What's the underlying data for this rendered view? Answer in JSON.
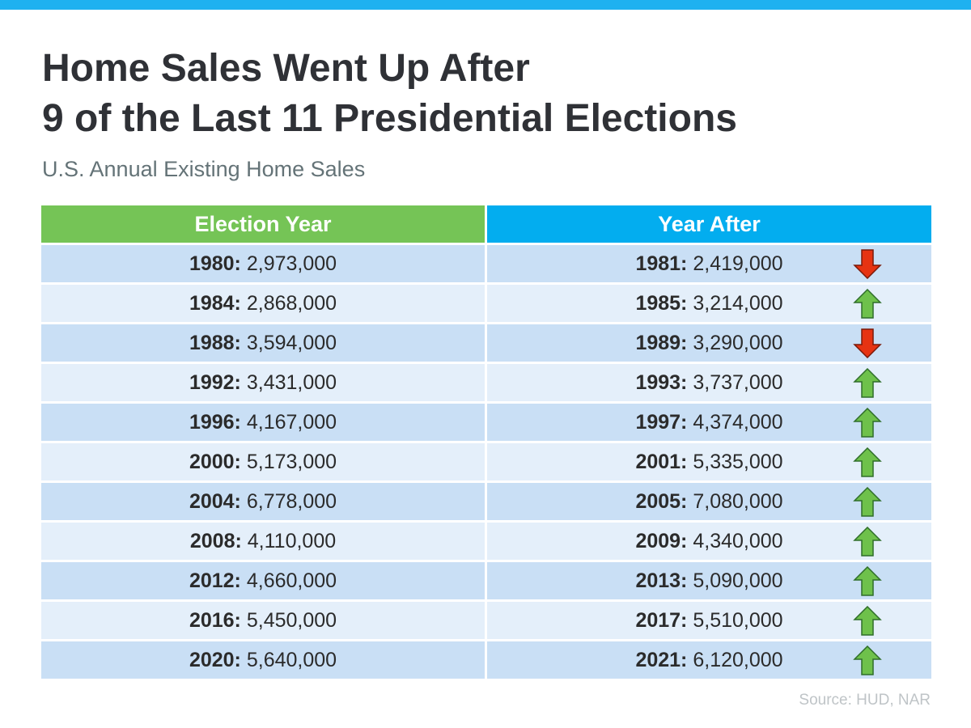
{
  "title_line1": "Home Sales Went Up After",
  "title_line2": "9 of the Last 11 Presidential Elections",
  "subtitle": "U.S. Annual Existing Home Sales",
  "source": "Source: HUD, NAR",
  "colors": {
    "top_bar": "#1eb1f0",
    "header_left": "#75c456",
    "header_right": "#03adef",
    "row_dark": "#c9dff5",
    "row_light": "#e4effa",
    "arrow_up": "#6ec14b",
    "arrow_down": "#e63312"
  },
  "chart_data": {
    "type": "table",
    "columns": [
      "Election Year",
      "Year After"
    ],
    "rows": [
      {
        "election_year": "1980:",
        "election_sales": "2,973,000",
        "after_year": "1981:",
        "after_sales": "2,419,000",
        "trend": "down"
      },
      {
        "election_year": "1984:",
        "election_sales": "2,868,000",
        "after_year": "1985:",
        "after_sales": "3,214,000",
        "trend": "up"
      },
      {
        "election_year": "1988:",
        "election_sales": "3,594,000",
        "after_year": "1989:",
        "after_sales": "3,290,000",
        "trend": "down"
      },
      {
        "election_year": "1992:",
        "election_sales": "3,431,000",
        "after_year": "1993:",
        "after_sales": "3,737,000",
        "trend": "up"
      },
      {
        "election_year": "1996:",
        "election_sales": "4,167,000",
        "after_year": "1997:",
        "after_sales": "4,374,000",
        "trend": "up"
      },
      {
        "election_year": "2000:",
        "election_sales": "5,173,000",
        "after_year": "2001:",
        "after_sales": "5,335,000",
        "trend": "up"
      },
      {
        "election_year": "2004:",
        "election_sales": "6,778,000",
        "after_year": "2005:",
        "after_sales": "7,080,000",
        "trend": "up"
      },
      {
        "election_year": "2008:",
        "election_sales": "4,110,000",
        "after_year": "2009:",
        "after_sales": "4,340,000",
        "trend": "up"
      },
      {
        "election_year": "2012:",
        "election_sales": "4,660,000",
        "after_year": "2013:",
        "after_sales": "5,090,000",
        "trend": "up"
      },
      {
        "election_year": "2016:",
        "election_sales": "5,450,000",
        "after_year": "2017:",
        "after_sales": "5,510,000",
        "trend": "up"
      },
      {
        "election_year": "2020:",
        "election_sales": "5,640,000",
        "after_year": "2021:",
        "after_sales": "6,120,000",
        "trend": "up"
      }
    ]
  }
}
